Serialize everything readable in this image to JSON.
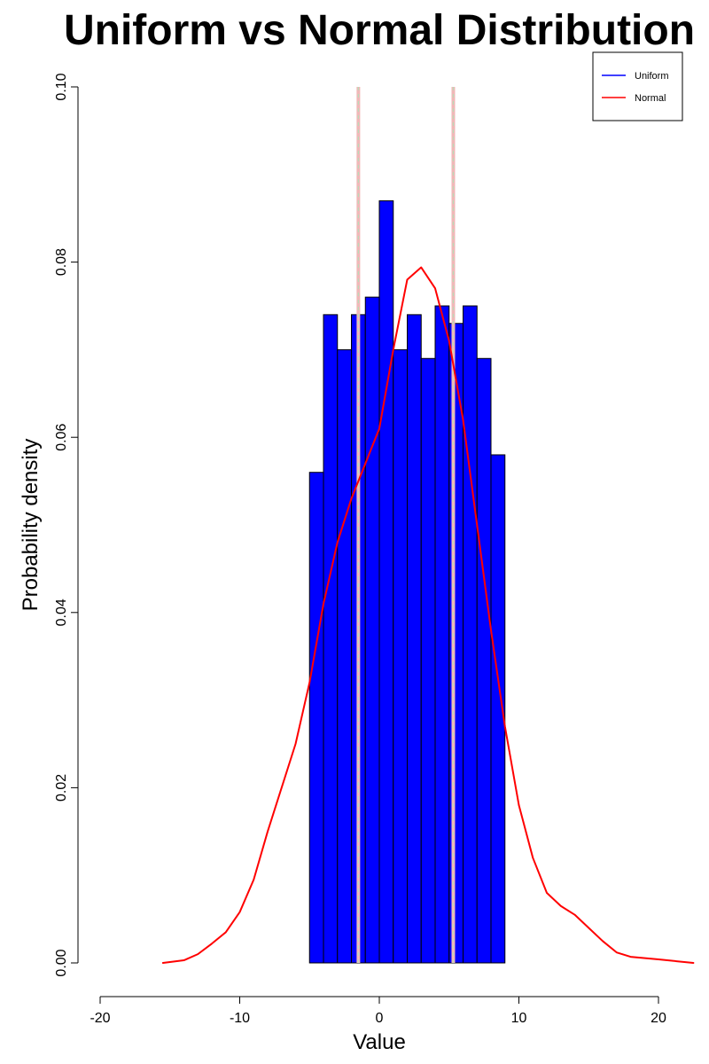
{
  "chart_data": {
    "type": "histogram",
    "title": "Uniform vs Normal Distribution",
    "xlabel": "Value",
    "ylabel": "Probability density",
    "xlim": [
      -22.5,
      22.5
    ],
    "ylim": [
      0,
      0.1
    ],
    "x_ticks": [
      -20,
      -10,
      0,
      10,
      20
    ],
    "y_ticks": [
      0.0,
      0.02,
      0.04,
      0.06,
      0.08,
      0.1
    ],
    "y_tick_labels": [
      "0.00",
      "0.02",
      "0.04",
      "0.06",
      "0.08",
      "0.10"
    ],
    "grid": false,
    "legend_position": "top-right",
    "colors": {
      "uniform": "#0000ff",
      "normal": "#ff0000",
      "vline_outer": "#f0b8b8",
      "vline_inner": "#b8ddb8",
      "bar_border": "#000000"
    },
    "legend": [
      {
        "name": "Uniform",
        "color": "#0000ff"
      },
      {
        "name": "Normal",
        "color": "#ff0000"
      }
    ],
    "series": [
      {
        "name": "Uniform",
        "type": "histogram",
        "bins": [
          {
            "x0": -5,
            "x1": -4,
            "density": 0.056
          },
          {
            "x0": -4,
            "x1": -3,
            "density": 0.074
          },
          {
            "x0": -3,
            "x1": -2,
            "density": 0.07
          },
          {
            "x0": -2,
            "x1": -1,
            "density": 0.074
          },
          {
            "x0": -1,
            "x1": 0,
            "density": 0.076
          },
          {
            "x0": 0,
            "x1": 1,
            "density": 0.087
          },
          {
            "x0": 1,
            "x1": 2,
            "density": 0.07
          },
          {
            "x0": 2,
            "x1": 3,
            "density": 0.074
          },
          {
            "x0": 3,
            "x1": 4,
            "density": 0.069
          },
          {
            "x0": 4,
            "x1": 5,
            "density": 0.075
          },
          {
            "x0": 5,
            "x1": 6,
            "density": 0.073
          },
          {
            "x0": 6,
            "x1": 7,
            "density": 0.075
          },
          {
            "x0": 7,
            "x1": 8,
            "density": 0.069
          },
          {
            "x0": 8,
            "x1": 9,
            "density": 0.058
          }
        ]
      },
      {
        "name": "Normal",
        "type": "line",
        "x": [
          -15.5,
          -14,
          -13,
          -12,
          -11,
          -10,
          -9,
          -8,
          -7,
          -6,
          -5,
          -4,
          -3,
          -2,
          -1,
          0,
          1,
          2,
          3,
          4,
          5,
          6,
          7,
          8,
          9,
          10,
          11,
          12,
          13,
          14,
          15,
          16,
          17,
          18,
          20,
          22.5
        ],
        "y": [
          0.0,
          0.0003,
          0.001,
          0.0022,
          0.0035,
          0.0058,
          0.0095,
          0.015,
          0.02,
          0.025,
          0.032,
          0.041,
          0.048,
          0.053,
          0.057,
          0.061,
          0.07,
          0.078,
          0.0794,
          0.077,
          0.071,
          0.062,
          0.05,
          0.038,
          0.027,
          0.018,
          0.012,
          0.008,
          0.0065,
          0.0055,
          0.004,
          0.0025,
          0.0012,
          0.0007,
          0.0004,
          0.0
        ]
      }
    ],
    "vlines": [
      {
        "x": -1.5
      },
      {
        "x": 5.3
      }
    ]
  }
}
